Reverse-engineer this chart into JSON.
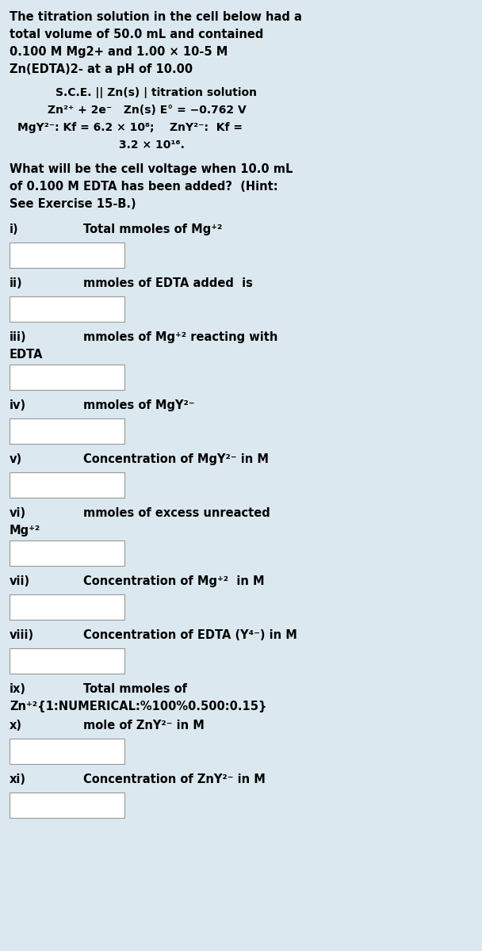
{
  "bg_color": "#dce8f0",
  "white": "#ffffff",
  "text_color": "#000000",
  "title_lines": [
    "The titration solution in the cell below had a",
    "total volume of 50.0 mL and contained",
    "0.100 M Mg2+ and 1.00 × 10-5 M",
    "Zn(EDTA)2- at a pH of 10.00"
  ],
  "cell_line": "S.C.E. || Zn(s) | titration solution",
  "reaction_line": "Zn²⁺ + 2e⁻   Zn(s) E° = −0.762 V",
  "kf_line1": "MgY²⁻: Kf = 6.2 × 10⁸;    ZnY²⁻:  Kf =",
  "kf_line2": "3.2 × 10¹⁶.",
  "question_lines": [
    "What will be the cell voltage when 10.0 mL",
    "of 0.100 M EDTA has been added?  (Hint:",
    "See Exercise 15-B.)"
  ],
  "items": [
    {
      "label": "i)",
      "text": "Total mmoles of Mg⁺²",
      "has_box": true,
      "extra_line": null
    },
    {
      "label": "ii)",
      "text": "mmoles of EDTA added  is",
      "has_box": true,
      "extra_line": null
    },
    {
      "label": "iii)",
      "text": "mmoles of Mg⁺² reacting with",
      "has_box": true,
      "extra_line": "EDTA"
    },
    {
      "label": "iv)",
      "text": "mmoles of MgY²⁻",
      "has_box": true,
      "extra_line": null
    },
    {
      "label": "v)",
      "text": "Concentration of MgY²⁻ in M",
      "has_box": true,
      "extra_line": null
    },
    {
      "label": "vi)",
      "text": "mmoles of excess unreacted",
      "has_box": true,
      "extra_line": "Mg⁺²"
    },
    {
      "label": "vii)",
      "text": "Concentration of Mg⁺²  in M",
      "has_box": true,
      "extra_line": null
    },
    {
      "label": "viii)",
      "text": "Concentration of EDTA (Y⁴⁻) in M",
      "has_box": true,
      "extra_line": null
    },
    {
      "label": "ix)",
      "text": "Total mmoles of",
      "has_box": false,
      "extra_line": "Zn⁺²{1:NUMERICAL:%100%0.500:0.15}"
    },
    {
      "label": "x)",
      "text": "mole of ZnY²⁻ in M",
      "has_box": true,
      "extra_line": null
    },
    {
      "label": "xi)",
      "text": "Concentration of ZnY²⁻ in M",
      "has_box": true,
      "extra_line": null
    }
  ],
  "font_size_title": 10.5,
  "font_size_items": 10.5,
  "font_size_cell": 10.0
}
